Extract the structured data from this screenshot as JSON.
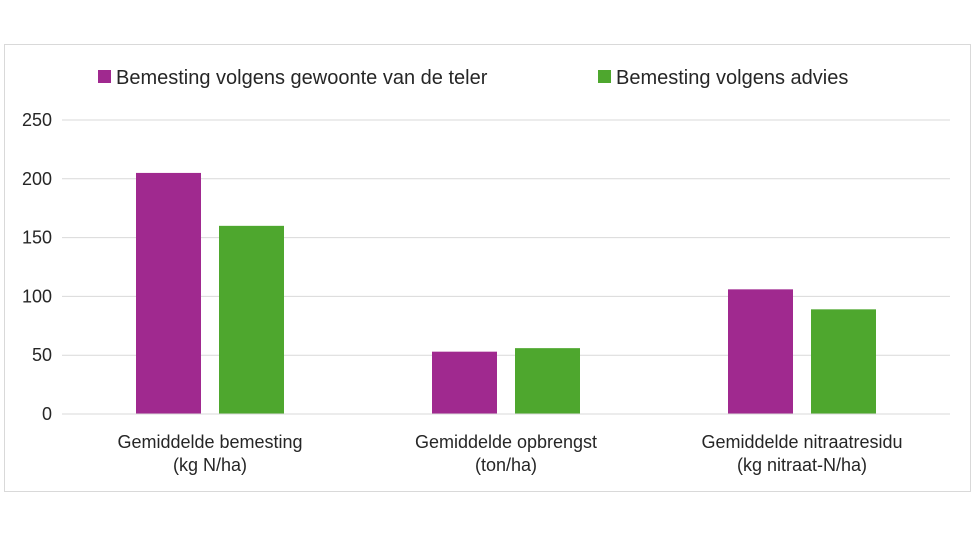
{
  "chart_data": {
    "type": "bar",
    "categories": [
      [
        "Gemiddelde bemesting",
        "(kg N/ha)"
      ],
      [
        "Gemiddelde opbrengst",
        "(ton/ha)"
      ],
      [
        "Gemiddelde nitraatresidu",
        "(kg nitraat-N/ha)"
      ]
    ],
    "series": [
      {
        "name": "Bemesting volgens gewoonte van de teler",
        "color": "#A0298F",
        "values": [
          205,
          53,
          106
        ]
      },
      {
        "name": "Bemesting volgens advies",
        "color": "#4EA72E",
        "values": [
          160,
          56,
          89
        ]
      }
    ],
    "title": "",
    "xlabel": "",
    "ylabel": "",
    "ylim": [
      0,
      250
    ],
    "yticks": [
      0,
      50,
      100,
      150,
      200,
      250
    ],
    "grid": true,
    "legend_position": "top-center"
  }
}
